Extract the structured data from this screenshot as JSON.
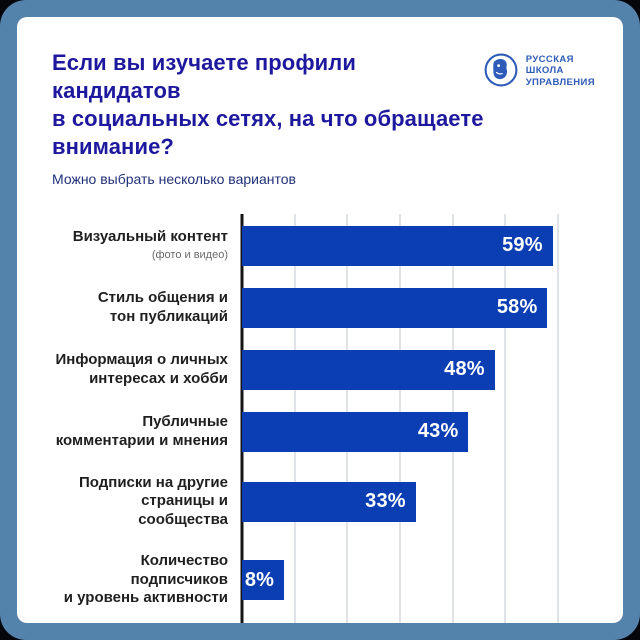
{
  "header": {
    "title": "Если вы изучаете профили кандидатов\nв социальных сетях, на что обращаете\nвнимание?",
    "subtitle": "Можно выбрать несколько вариантов"
  },
  "logo": {
    "name": "Русская школа управления",
    "lines": [
      "РУССКАЯ",
      "ШКОЛА",
      "УПРАВЛЕНИЯ"
    ]
  },
  "chart_data": {
    "type": "bar",
    "orientation": "horizontal",
    "title": "Если вы изучаете профили кандидатов в социальных сетях, на что обращаете внимание?",
    "subtitle": "Можно выбрать несколько вариантов",
    "categories": [
      {
        "label": "Визуальный контент",
        "sublabel": "(фото и видео)",
        "value": 59
      },
      {
        "label": "Стиль общения и\nтон публикаций",
        "sublabel": "",
        "value": 58
      },
      {
        "label": "Информация о личных\nинтересах и хобби",
        "sublabel": "",
        "value": 48
      },
      {
        "label": "Публичные\nкомментарии и мнения",
        "sublabel": "",
        "value": 43
      },
      {
        "label": "Подписки на другие\nстраницы и сообщества",
        "sublabel": "",
        "value": 33
      },
      {
        "label": "Количество подписчиков\nи уровень активности",
        "sublabel": "",
        "value": 8
      }
    ],
    "value_suffix": "%",
    "xlim": [
      0,
      60
    ],
    "x_ticks": [
      "0%",
      "10%",
      "20%",
      "30%",
      "40%",
      "50%",
      "60%"
    ],
    "grid": true,
    "legend": false
  },
  "colors": {
    "page_background": "#05070a",
    "frame": "#5382ab",
    "card": "#ffffff",
    "title": "#1e189e",
    "subtitle": "#21307a",
    "bar": "#0b3db3",
    "value_label": "#ffffff",
    "category_label": "#1f1f1f",
    "sublabel": "#6a6a6a",
    "gridline": "#dfe2e7",
    "axis_line": "#141414",
    "tick_label": "#26282c",
    "logo_blue": "#2e5cb8"
  }
}
